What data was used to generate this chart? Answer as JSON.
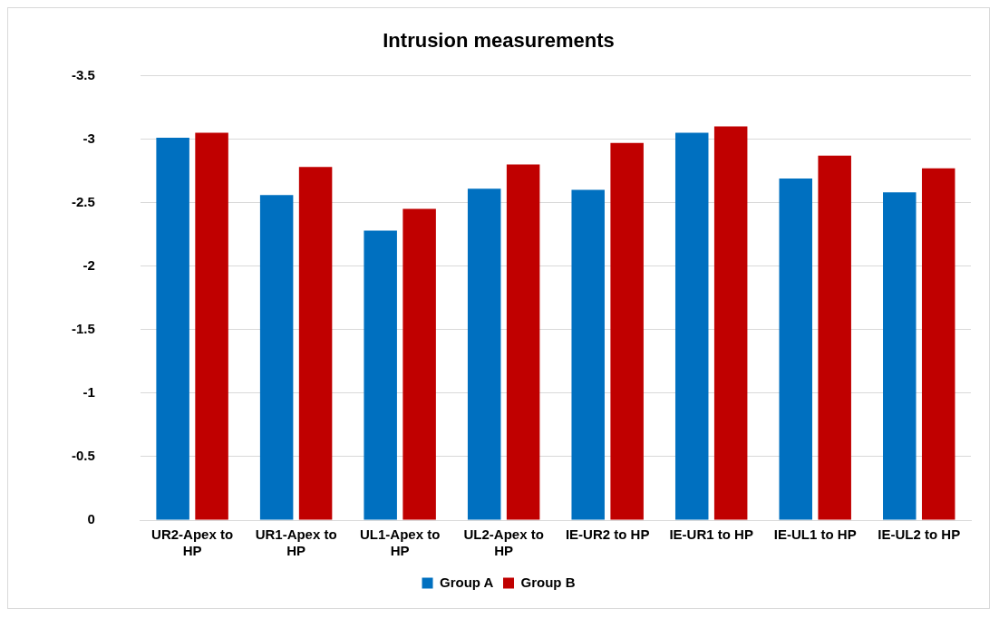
{
  "chart_data": {
    "type": "bar",
    "title": "Intrusion measurements",
    "categories": [
      "UR2-Apex to HP",
      "UR1-Apex to HP",
      "UL1-Apex to HP",
      "UL2-Apex to HP",
      "IE-UR2 to HP",
      "IE-UR1 to HP",
      "IE-UL1 to HP",
      "IE-UL2 to HP"
    ],
    "series": [
      {
        "name": "Group A",
        "color": "#0070c0",
        "values": [
          -3.01,
          -2.56,
          -2.28,
          -2.61,
          -2.6,
          -3.05,
          -2.69,
          -2.58
        ]
      },
      {
        "name": "Group B",
        "color": "#c00000",
        "values": [
          -3.05,
          -2.78,
          -2.45,
          -2.8,
          -2.97,
          -3.1,
          -2.87,
          -2.77
        ]
      }
    ],
    "ylim": [
      0,
      -3.5
    ],
    "yticks": [
      -3.5,
      -3,
      -2.5,
      -2,
      -1.5,
      -1,
      -0.5,
      0
    ],
    "grid": "y",
    "legend": "bottom"
  }
}
